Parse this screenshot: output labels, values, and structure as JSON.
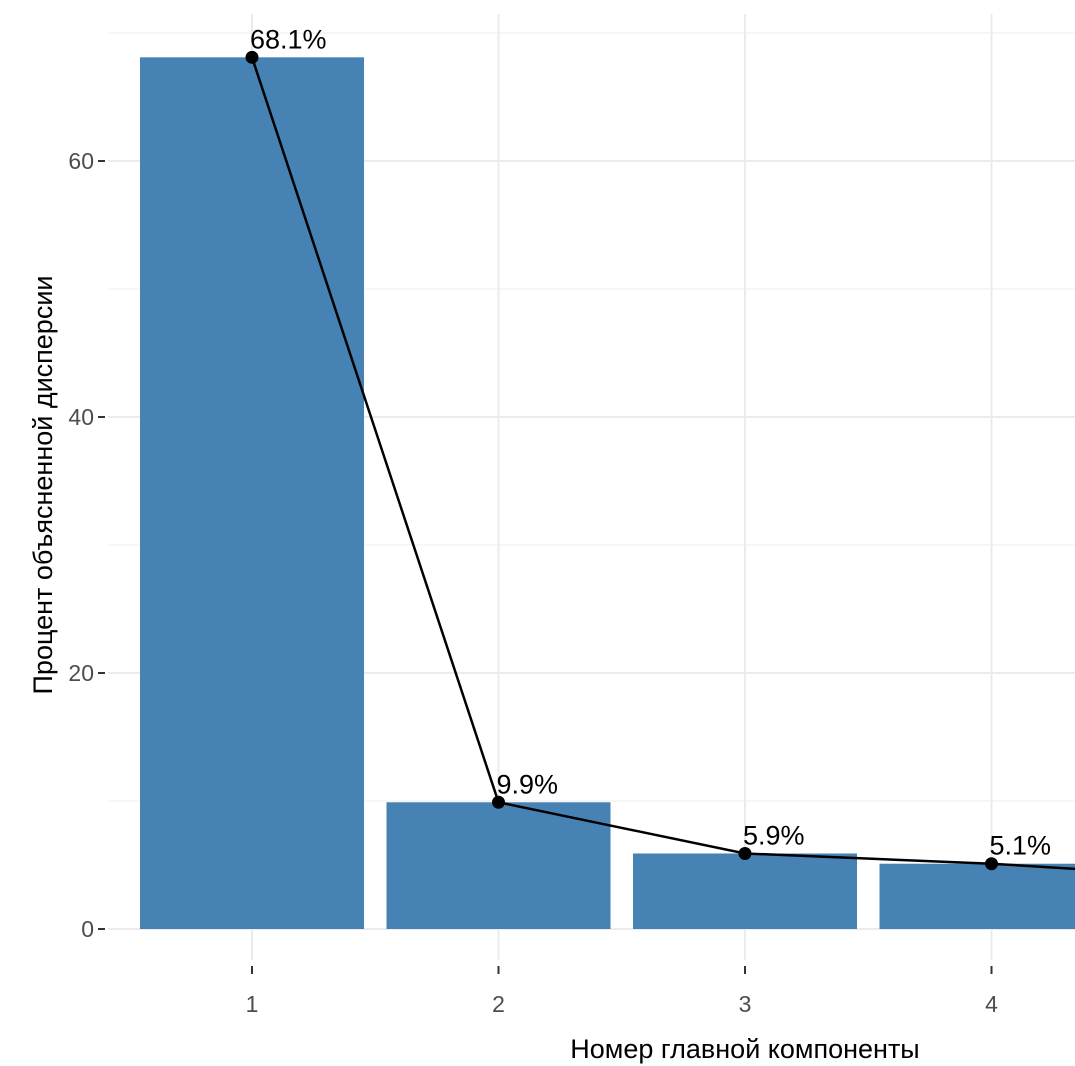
{
  "chart_data": {
    "type": "bar",
    "categories": [
      "1",
      "2",
      "3",
      "4"
    ],
    "values": [
      68.1,
      9.9,
      5.9,
      5.1
    ],
    "labels": [
      "68.1%",
      "9.9%",
      "5.9%",
      "5.1%"
    ],
    "line_overlay": true,
    "bar_color": "#4682b4",
    "line_color": "#000000",
    "xlabel": "Номер главной компоненты",
    "ylabel": "Процент объясненной дисперсии",
    "yticks": [
      0,
      20,
      40,
      60
    ],
    "ylim": [
      0,
      71
    ],
    "grid": true
  }
}
